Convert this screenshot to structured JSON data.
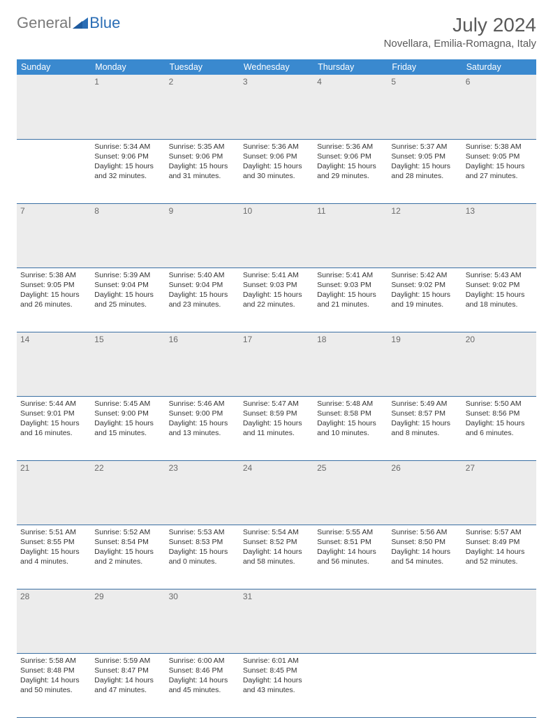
{
  "logo": {
    "text1": "General",
    "text2": "Blue"
  },
  "title": "July 2024",
  "location": "Novellara, Emilia-Romagna, Italy",
  "colors": {
    "header_bg": "#3a89cf",
    "header_text": "#ffffff",
    "daynum_bg": "#ececec",
    "daynum_text": "#6a6a6a",
    "border": "#3a6fa3",
    "body_text": "#333333",
    "logo_gray": "#7a7a7a",
    "logo_blue": "#2a6db5"
  },
  "weekdays": [
    "Sunday",
    "Monday",
    "Tuesday",
    "Wednesday",
    "Thursday",
    "Friday",
    "Saturday"
  ],
  "weeks": [
    {
      "nums": [
        "",
        "1",
        "2",
        "3",
        "4",
        "5",
        "6"
      ],
      "cells": [
        [],
        [
          "Sunrise: 5:34 AM",
          "Sunset: 9:06 PM",
          "Daylight: 15 hours and 32 minutes."
        ],
        [
          "Sunrise: 5:35 AM",
          "Sunset: 9:06 PM",
          "Daylight: 15 hours and 31 minutes."
        ],
        [
          "Sunrise: 5:36 AM",
          "Sunset: 9:06 PM",
          "Daylight: 15 hours and 30 minutes."
        ],
        [
          "Sunrise: 5:36 AM",
          "Sunset: 9:06 PM",
          "Daylight: 15 hours and 29 minutes."
        ],
        [
          "Sunrise: 5:37 AM",
          "Sunset: 9:05 PM",
          "Daylight: 15 hours and 28 minutes."
        ],
        [
          "Sunrise: 5:38 AM",
          "Sunset: 9:05 PM",
          "Daylight: 15 hours and 27 minutes."
        ]
      ]
    },
    {
      "nums": [
        "7",
        "8",
        "9",
        "10",
        "11",
        "12",
        "13"
      ],
      "cells": [
        [
          "Sunrise: 5:38 AM",
          "Sunset: 9:05 PM",
          "Daylight: 15 hours and 26 minutes."
        ],
        [
          "Sunrise: 5:39 AM",
          "Sunset: 9:04 PM",
          "Daylight: 15 hours and 25 minutes."
        ],
        [
          "Sunrise: 5:40 AM",
          "Sunset: 9:04 PM",
          "Daylight: 15 hours and 23 minutes."
        ],
        [
          "Sunrise: 5:41 AM",
          "Sunset: 9:03 PM",
          "Daylight: 15 hours and 22 minutes."
        ],
        [
          "Sunrise: 5:41 AM",
          "Sunset: 9:03 PM",
          "Daylight: 15 hours and 21 minutes."
        ],
        [
          "Sunrise: 5:42 AM",
          "Sunset: 9:02 PM",
          "Daylight: 15 hours and 19 minutes."
        ],
        [
          "Sunrise: 5:43 AM",
          "Sunset: 9:02 PM",
          "Daylight: 15 hours and 18 minutes."
        ]
      ]
    },
    {
      "nums": [
        "14",
        "15",
        "16",
        "17",
        "18",
        "19",
        "20"
      ],
      "cells": [
        [
          "Sunrise: 5:44 AM",
          "Sunset: 9:01 PM",
          "Daylight: 15 hours and 16 minutes."
        ],
        [
          "Sunrise: 5:45 AM",
          "Sunset: 9:00 PM",
          "Daylight: 15 hours and 15 minutes."
        ],
        [
          "Sunrise: 5:46 AM",
          "Sunset: 9:00 PM",
          "Daylight: 15 hours and 13 minutes."
        ],
        [
          "Sunrise: 5:47 AM",
          "Sunset: 8:59 PM",
          "Daylight: 15 hours and 11 minutes."
        ],
        [
          "Sunrise: 5:48 AM",
          "Sunset: 8:58 PM",
          "Daylight: 15 hours and 10 minutes."
        ],
        [
          "Sunrise: 5:49 AM",
          "Sunset: 8:57 PM",
          "Daylight: 15 hours and 8 minutes."
        ],
        [
          "Sunrise: 5:50 AM",
          "Sunset: 8:56 PM",
          "Daylight: 15 hours and 6 minutes."
        ]
      ]
    },
    {
      "nums": [
        "21",
        "22",
        "23",
        "24",
        "25",
        "26",
        "27"
      ],
      "cells": [
        [
          "Sunrise: 5:51 AM",
          "Sunset: 8:55 PM",
          "Daylight: 15 hours and 4 minutes."
        ],
        [
          "Sunrise: 5:52 AM",
          "Sunset: 8:54 PM",
          "Daylight: 15 hours and 2 minutes."
        ],
        [
          "Sunrise: 5:53 AM",
          "Sunset: 8:53 PM",
          "Daylight: 15 hours and 0 minutes."
        ],
        [
          "Sunrise: 5:54 AM",
          "Sunset: 8:52 PM",
          "Daylight: 14 hours and 58 minutes."
        ],
        [
          "Sunrise: 5:55 AM",
          "Sunset: 8:51 PM",
          "Daylight: 14 hours and 56 minutes."
        ],
        [
          "Sunrise: 5:56 AM",
          "Sunset: 8:50 PM",
          "Daylight: 14 hours and 54 minutes."
        ],
        [
          "Sunrise: 5:57 AM",
          "Sunset: 8:49 PM",
          "Daylight: 14 hours and 52 minutes."
        ]
      ]
    },
    {
      "nums": [
        "28",
        "29",
        "30",
        "31",
        "",
        "",
        ""
      ],
      "cells": [
        [
          "Sunrise: 5:58 AM",
          "Sunset: 8:48 PM",
          "Daylight: 14 hours and 50 minutes."
        ],
        [
          "Sunrise: 5:59 AM",
          "Sunset: 8:47 PM",
          "Daylight: 14 hours and 47 minutes."
        ],
        [
          "Sunrise: 6:00 AM",
          "Sunset: 8:46 PM",
          "Daylight: 14 hours and 45 minutes."
        ],
        [
          "Sunrise: 6:01 AM",
          "Sunset: 8:45 PM",
          "Daylight: 14 hours and 43 minutes."
        ],
        [],
        [],
        []
      ]
    }
  ]
}
